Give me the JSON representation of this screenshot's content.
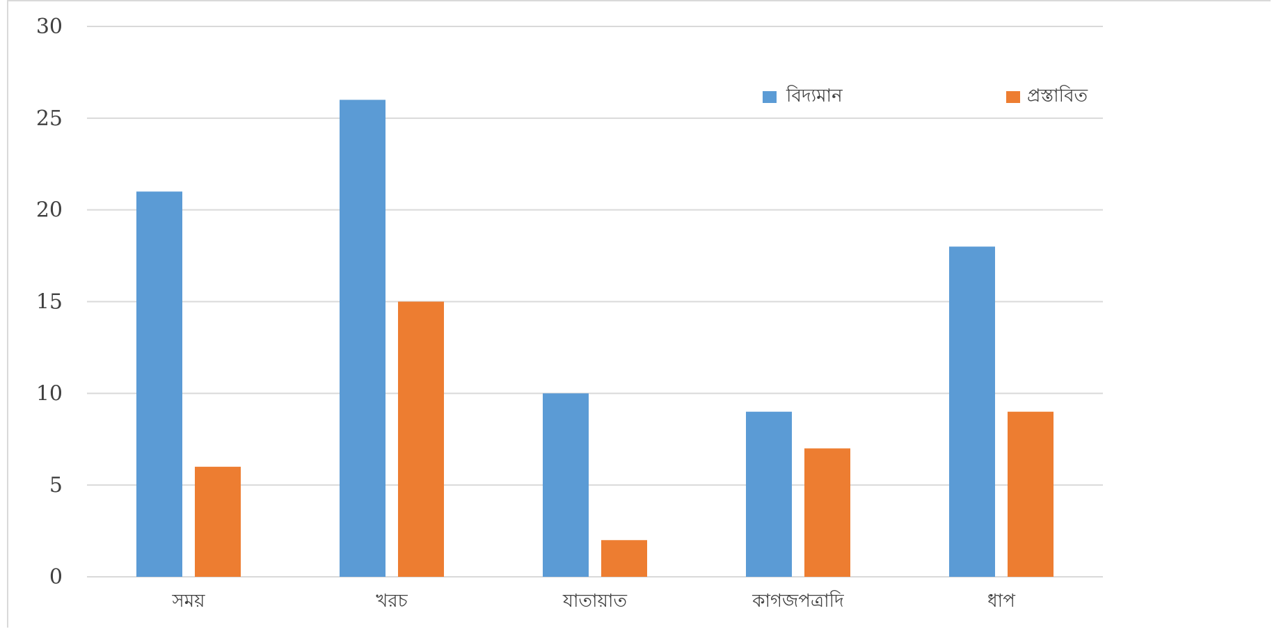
{
  "chart_data": {
    "type": "bar",
    "categories": [
      "সময়",
      "খরচ",
      "যাতায়াত",
      "কাগজপত্রাদি",
      "ধাপ"
    ],
    "series": [
      {
        "name": "বিদ্যমান",
        "color": "#5b9bd5",
        "values": [
          21,
          26,
          10,
          9,
          18
        ]
      },
      {
        "name": "প্রস্তাবিত",
        "color": "#ed7d31",
        "values": [
          6,
          15,
          2,
          7,
          9
        ]
      }
    ],
    "ylim": [
      0,
      30
    ],
    "yticks": [
      "0",
      "5",
      "10",
      "15",
      "20",
      "25",
      "30"
    ],
    "grid": true,
    "legend_position": "top-right",
    "title": "",
    "xlabel": "",
    "ylabel": ""
  }
}
